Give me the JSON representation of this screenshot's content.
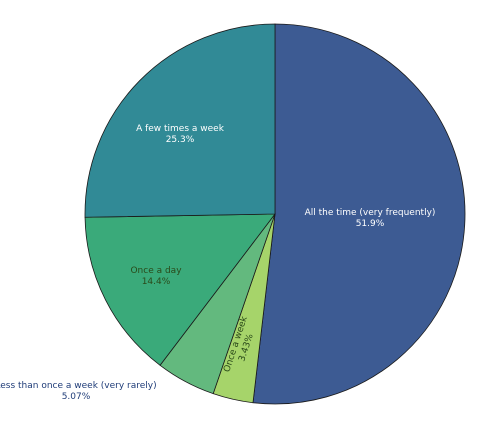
{
  "chart_data": {
    "type": "pie",
    "title": "",
    "start_angle_deg": 0,
    "direction": "clockwise",
    "slices": [
      {
        "label": "All the time (very frequently)",
        "value": 51.9,
        "value_label": "51.9%",
        "color": "#3d5b93",
        "label_color": "#ffffff",
        "label_placement": "inside"
      },
      {
        "label": "Once a week",
        "value": 3.43,
        "value_label": "3.43%",
        "color": "#a6d46a",
        "label_color": "#2a4a1a",
        "label_placement": "inside-rotated"
      },
      {
        "label": "Less than once a week (very rarely)",
        "value": 5.07,
        "value_label": "5.07%",
        "color": "#63b97e",
        "label_color": "#1f3c78",
        "label_placement": "outside"
      },
      {
        "label": "Once a day",
        "value": 14.4,
        "value_label": "14.4%",
        "color": "#3aaa7a",
        "label_color": "#2a4a1a",
        "label_placement": "inside"
      },
      {
        "label": "A few times a week",
        "value": 25.3,
        "value_label": "25.3%",
        "color": "#318a96",
        "label_color": "#ffffff",
        "label_placement": "inside"
      }
    ]
  }
}
